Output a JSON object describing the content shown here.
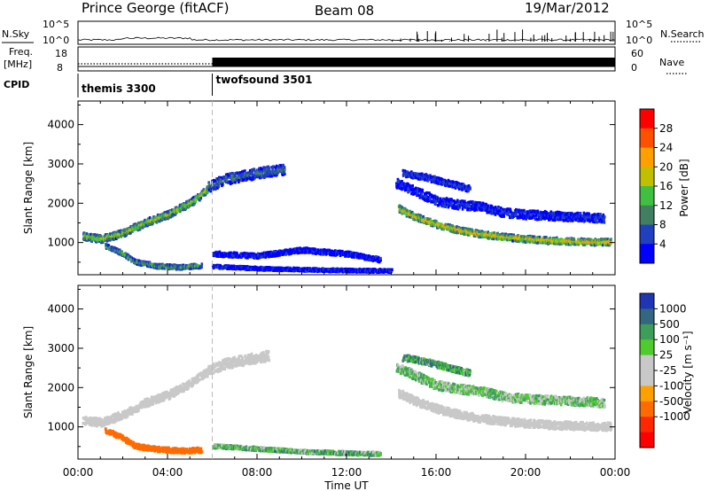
{
  "header": {
    "station": "Prince George (fitACF)",
    "beam": "Beam 08",
    "date": "19/Mar/2012"
  },
  "strip_labels": {
    "nsky": "N.Sky",
    "nsearch": "N.Search",
    "freq": "Freq.",
    "freq_unit": "[MHz]",
    "nave": "Nave",
    "cpid": "CPID"
  },
  "chart_data": [
    {
      "type": "line",
      "title": "N.Sky / N.Search",
      "y_ticks": [
        "10^5",
        "10^0"
      ],
      "y2_ticks": [
        "10^5",
        "10^0"
      ],
      "xlim": [
        0,
        24
      ]
    },
    {
      "type": "line",
      "title": "Freq. [MHz] / Nave",
      "y_ticks": [
        "18",
        "8"
      ],
      "y2_ticks": [
        "60",
        "0"
      ],
      "freq_mhz": 10,
      "nave_low": 20,
      "nave_high": 60,
      "nave_switch_hour": 6,
      "xlim": [
        0,
        24
      ]
    },
    {
      "type": "table",
      "title": "CPID",
      "segments": [
        {
          "label": "themis 3300",
          "start_hour": 0,
          "end_hour": 6
        },
        {
          "label": "twofsound 3501",
          "start_hour": 6,
          "end_hour": 24
        }
      ]
    },
    {
      "type": "heatmap",
      "ylabel": "Slant Range [km]",
      "xlabel": "Time UT",
      "x_ticks": [
        "00:00",
        "04:00",
        "08:00",
        "12:00",
        "16:00",
        "20:00",
        "00:00"
      ],
      "y_ticks": [
        "1000",
        "2000",
        "3000",
        "4000"
      ],
      "xlim": [
        0,
        24
      ],
      "ylim": [
        180,
        4600
      ],
      "colorbar_label": "Power [dB]",
      "colorbar_ticks": [
        "28",
        "24",
        "20",
        "16",
        "12",
        "8",
        "4"
      ],
      "colorbar_range": [
        0,
        32
      ],
      "colors": [
        "#0000ff",
        "#2040c0",
        "#408060",
        "#40c040",
        "#c0c000",
        "#ffa000",
        "#ff5000",
        "#ff0000"
      ],
      "bands": [
        {
          "points": [
            [
              0.2,
              1150
            ],
            [
              1.0,
              1080
            ],
            [
              2.0,
              1230
            ],
            [
              3.0,
              1500
            ],
            [
              4.0,
              1700
            ],
            [
              5.0,
              2000
            ],
            [
              5.8,
              2350
            ]
          ],
          "power": 18,
          "width": 180
        },
        {
          "points": [
            [
              5.8,
              2400
            ],
            [
              6.6,
              2600
            ],
            [
              7.5,
              2700
            ],
            [
              8.5,
              2800
            ],
            [
              9.2,
              2850
            ]
          ],
          "power": 9,
          "width": 260
        },
        {
          "points": [
            [
              1.2,
              900
            ],
            [
              2.0,
              700
            ],
            [
              2.5,
              500
            ],
            [
              3.5,
              390
            ],
            [
              4.5,
              360
            ],
            [
              5.5,
              400
            ]
          ],
          "power": 14,
          "width": 110
        },
        {
          "points": [
            [
              6.0,
              700
            ],
            [
              8.0,
              650
            ],
            [
              10.0,
              800
            ],
            [
              12.0,
              700
            ],
            [
              13.5,
              550
            ]
          ],
          "power": 4,
          "width": 120
        },
        {
          "points": [
            [
              6.0,
              380
            ],
            [
              8.0,
              330
            ],
            [
              10.0,
              300
            ],
            [
              12.0,
              280
            ],
            [
              14.0,
              270
            ]
          ],
          "power": 4,
          "width": 80
        },
        {
          "points": [
            [
              14.3,
              1850
            ],
            [
              15.0,
              1650
            ],
            [
              16.0,
              1450
            ],
            [
              17.0,
              1300
            ],
            [
              18.0,
              1200
            ],
            [
              19.0,
              1130
            ],
            [
              20.0,
              1080
            ],
            [
              21.0,
              1040
            ],
            [
              22.0,
              1020
            ],
            [
              23.0,
              1000
            ],
            [
              23.8,
              1000
            ]
          ],
          "power": 22,
          "width": 160
        },
        {
          "points": [
            [
              14.2,
              2500
            ],
            [
              15.0,
              2300
            ],
            [
              16.0,
              2050
            ],
            [
              17.0,
              1950
            ],
            [
              18.0,
              1900
            ],
            [
              19.0,
              1750
            ],
            [
              20.0,
              1700
            ],
            [
              22.0,
              1650
            ],
            [
              23.5,
              1600
            ]
          ],
          "power": 5,
          "width": 220
        },
        {
          "points": [
            [
              14.5,
              2750
            ],
            [
              15.5,
              2650
            ],
            [
              16.5,
              2500
            ],
            [
              17.5,
              2350
            ]
          ],
          "power": 6,
          "width": 150
        }
      ]
    },
    {
      "type": "heatmap",
      "ylabel": "Slant Range [km]",
      "xlabel": "Time UT",
      "x_ticks": [
        "00:00",
        "04:00",
        "08:00",
        "12:00",
        "16:00",
        "20:00",
        "00:00"
      ],
      "y_ticks": [
        "1000",
        "2000",
        "3000",
        "4000"
      ],
      "xlim": [
        0,
        24
      ],
      "ylim": [
        180,
        4600
      ],
      "colorbar_label": "Velocity [m s⁻¹]",
      "colorbar_ticks": [
        "1000",
        "500",
        "100",
        "25",
        "-25",
        "-100",
        "-500",
        "-1000"
      ],
      "colors": [
        "#1f35b4",
        "#336680",
        "#3d9e5a",
        "#4fcb2e",
        "#c8c8c8",
        "#c8c8c8",
        "#ffa000",
        "#ff6b00",
        "#ff2800",
        "#ff0000"
      ],
      "bands": [
        {
          "points": [
            [
              0.2,
              1150
            ],
            [
              1.0,
              1100
            ],
            [
              2.0,
              1300
            ],
            [
              3.0,
              1600
            ],
            [
              4.0,
              1800
            ],
            [
              5.0,
              2100
            ],
            [
              5.8,
              2400
            ]
          ],
          "velocity": 0,
          "width": 200
        },
        {
          "points": [
            [
              5.8,
              2450
            ],
            [
              6.6,
              2600
            ],
            [
              7.5,
              2700
            ],
            [
              8.5,
              2800
            ]
          ],
          "velocity": 0,
          "width": 260
        },
        {
          "points": [
            [
              1.2,
              900
            ],
            [
              2.0,
              700
            ],
            [
              2.5,
              500
            ],
            [
              3.5,
              420
            ],
            [
              4.5,
              380
            ],
            [
              5.5,
              400
            ]
          ],
          "velocity": -200,
          "width": 120
        },
        {
          "points": [
            [
              6.0,
              500
            ],
            [
              8.0,
              430
            ],
            [
              10.0,
              360
            ],
            [
              12.0,
              320
            ],
            [
              13.5,
              300
            ]
          ],
          "velocity": 60,
          "width": 90
        },
        {
          "points": [
            [
              14.3,
              1850
            ],
            [
              15.0,
              1650
            ],
            [
              16.0,
              1450
            ],
            [
              17.0,
              1300
            ],
            [
              18.0,
              1200
            ],
            [
              19.0,
              1130
            ],
            [
              20.0,
              1080
            ],
            [
              21.0,
              1040
            ],
            [
              22.0,
              1020
            ],
            [
              23.0,
              1000
            ],
            [
              23.8,
              1000
            ]
          ],
          "velocity": 0,
          "width": 200
        },
        {
          "points": [
            [
              14.2,
              2500
            ],
            [
              15.0,
              2300
            ],
            [
              16.0,
              2050
            ],
            [
              17.0,
              1950
            ],
            [
              18.0,
              1900
            ],
            [
              19.0,
              1750
            ],
            [
              20.0,
              1700
            ],
            [
              22.0,
              1650
            ],
            [
              23.5,
              1600
            ]
          ],
          "velocity": 40,
          "width": 220
        },
        {
          "points": [
            [
              14.5,
              2750
            ],
            [
              15.5,
              2650
            ],
            [
              16.5,
              2500
            ],
            [
              17.5,
              2350
            ]
          ],
          "velocity": 80,
          "width": 150
        }
      ]
    }
  ]
}
